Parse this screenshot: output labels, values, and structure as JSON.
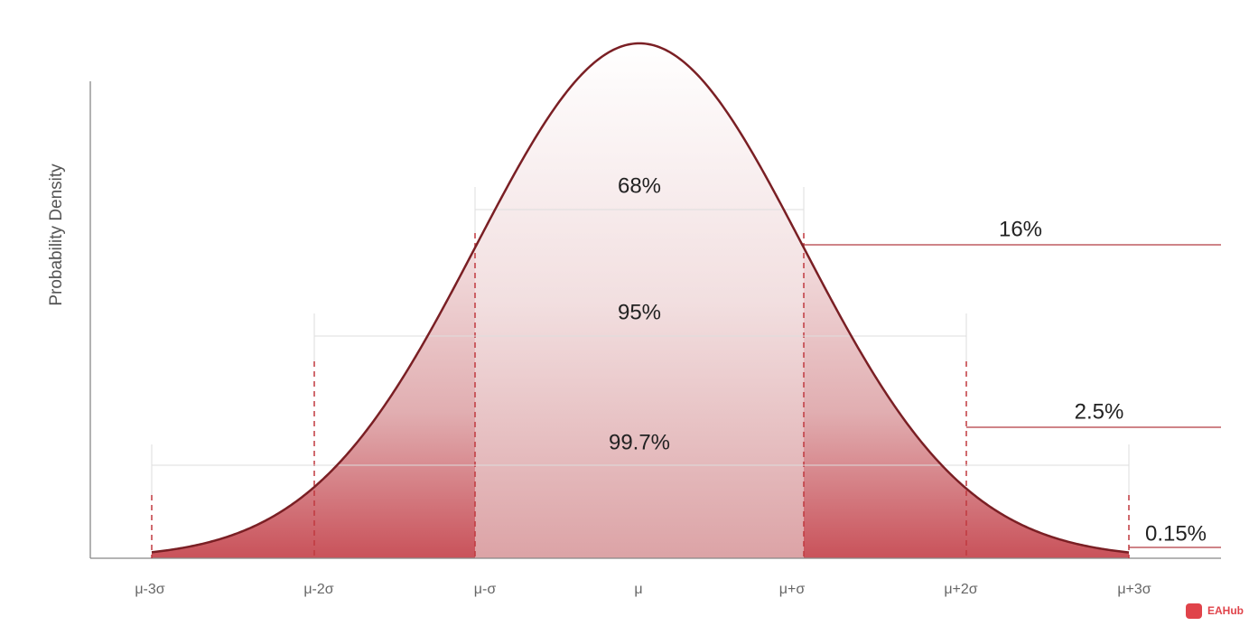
{
  "y_axis_label": "Probability Density",
  "x_labels": [
    "μ-3σ",
    "μ-2σ",
    "μ-σ",
    "μ",
    "μ+σ",
    "μ+2σ",
    "μ+3σ"
  ],
  "intervals": [
    "68%",
    "95%",
    "99.7%"
  ],
  "tails": [
    "16%",
    "2.5%",
    "0.15%"
  ],
  "watermark": "EAHub"
}
